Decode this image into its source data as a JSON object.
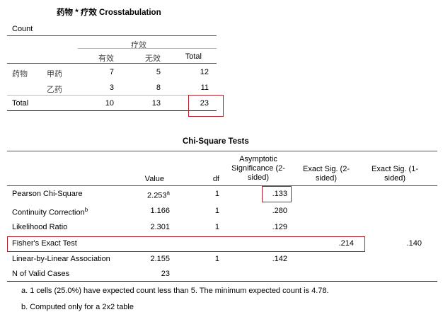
{
  "crosstab": {
    "title": "药物 * 疗效 Crosstabulation",
    "count_label": "Count",
    "col_group_header": "疗效",
    "col_headers": [
      "有效",
      "无效",
      "Total"
    ],
    "row_group_label": "药物",
    "rows": [
      {
        "label": "甲药",
        "values": [
          "7",
          "5",
          "12"
        ]
      },
      {
        "label": "乙药",
        "values": [
          "3",
          "8",
          "11"
        ]
      }
    ],
    "total_row": {
      "label": "Total",
      "values": [
        "10",
        "13",
        "23"
      ]
    }
  },
  "chisq": {
    "title": "Chi-Square Tests",
    "headers": {
      "value": "Value",
      "df": "df",
      "asymp": "Asymptotic Significance (2-sided)",
      "exact2": "Exact Sig. (2-sided)",
      "exact1": "Exact Sig. (1-sided)"
    },
    "rows": [
      {
        "label": "Pearson Chi-Square",
        "sup": "",
        "value": "2.253",
        "value_sup": "a",
        "df": "1",
        "asymp": ".133",
        "exact2": "",
        "exact1": ""
      },
      {
        "label": "Continuity Correction",
        "sup": "b",
        "value": "1.166",
        "value_sup": "",
        "df": "1",
        "asymp": ".280",
        "exact2": "",
        "exact1": ""
      },
      {
        "label": "Likelihood Ratio",
        "sup": "",
        "value": "2.301",
        "value_sup": "",
        "df": "1",
        "asymp": ".129",
        "exact2": "",
        "exact1": ""
      },
      {
        "label": "Fisher's Exact Test",
        "sup": "",
        "value": "",
        "value_sup": "",
        "df": "",
        "asymp": "",
        "exact2": ".214",
        "exact1": ".140"
      },
      {
        "label": "Linear-by-Linear Association",
        "sup": "",
        "value": "2.155",
        "value_sup": "",
        "df": "1",
        "asymp": ".142",
        "exact2": "",
        "exact1": ""
      },
      {
        "label": "N of Valid Cases",
        "sup": "",
        "value": "23",
        "value_sup": "",
        "df": "",
        "asymp": "",
        "exact2": "",
        "exact1": ""
      }
    ],
    "footnotes": [
      "a. 1 cells (25.0%) have expected count less than 5. The minimum expected count is 4.78.",
      "b. Computed only for a 2x2 table"
    ]
  },
  "colors": {
    "highlight": "#b41f2a"
  }
}
